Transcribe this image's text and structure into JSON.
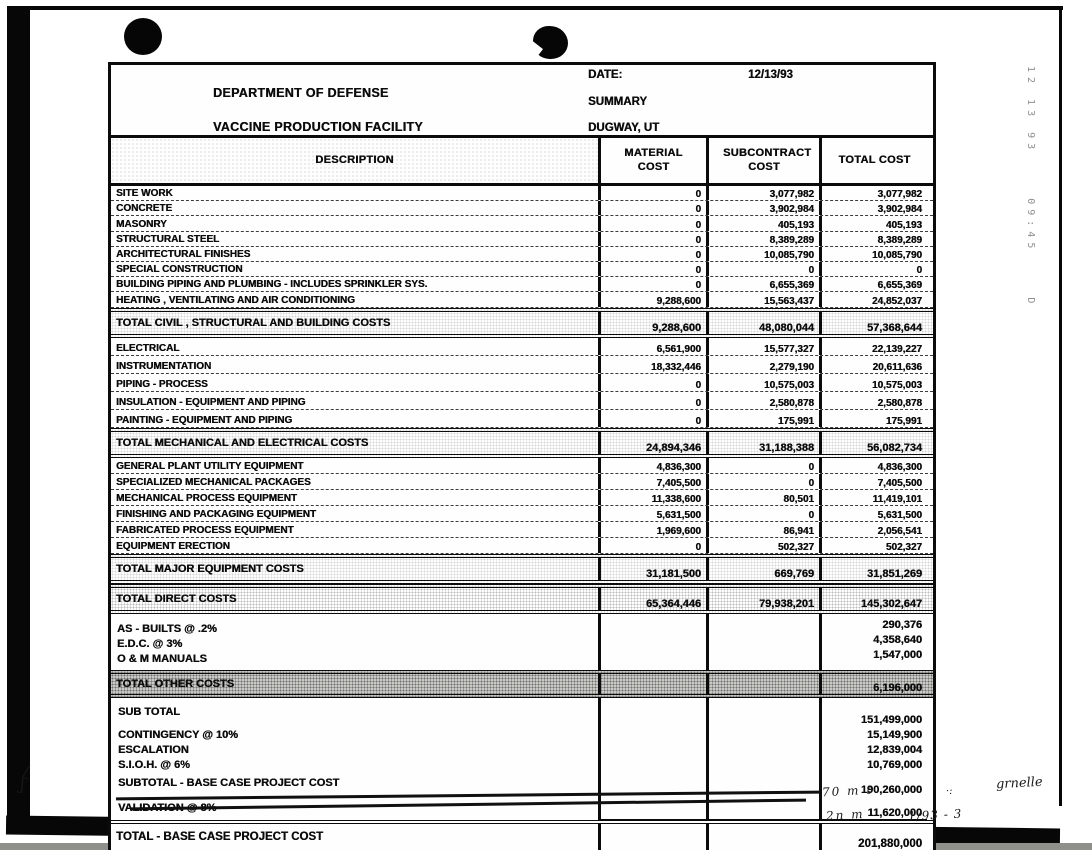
{
  "colors": {
    "ink": "#0c0c0c",
    "paper": "#ffffff",
    "fax_text": "#8f8f8f"
  },
  "page": {
    "date_label": "DATE:",
    "date_value": "12/13/93",
    "org": "DEPARTMENT OF DEFENSE",
    "doc_type": "SUMMARY",
    "facility": "VACCINE PRODUCTION FACILITY",
    "location": "DUGWAY, UT"
  },
  "table": {
    "columns": [
      "DESCRIPTION",
      "MATERIAL COST",
      "SUBCONTRACT COST",
      "TOTAL COST"
    ],
    "sections": [
      {
        "items": [
          {
            "desc": "SITE WORK",
            "material": "0",
            "subcontract": "3,077,982",
            "total": "3,077,982"
          },
          {
            "desc": "CONCRETE",
            "material": "0",
            "subcontract": "3,902,984",
            "total": "3,902,984"
          },
          {
            "desc": "MASONRY",
            "material": "0",
            "subcontract": "405,193",
            "total": "405,193"
          },
          {
            "desc": "STRUCTURAL STEEL",
            "material": "0",
            "subcontract": "8,389,289",
            "total": "8,389,289"
          },
          {
            "desc": "ARCHITECTURAL FINISHES",
            "material": "0",
            "subcontract": "10,085,790",
            "total": "10,085,790"
          },
          {
            "desc": "SPECIAL CONSTRUCTION",
            "material": "0",
            "subcontract": "0",
            "total": "0"
          },
          {
            "desc": "BUILDING PIPING AND PLUMBING - INCLUDES SPRINKLER SYS.",
            "material": "0",
            "subcontract": "6,655,369",
            "total": "6,655,369"
          },
          {
            "desc": "HEATING , VENTILATING AND AIR CONDITIONING",
            "material": "9,288,600",
            "subcontract": "15,563,437",
            "total": "24,852,037"
          }
        ],
        "total": {
          "desc": "TOTAL CIVIL , STRUCTURAL AND BUILDING COSTS",
          "material": "9,288,600",
          "subcontract": "48,080,044",
          "total": "57,368,644"
        }
      },
      {
        "items": [
          {
            "desc": "ELECTRICAL",
            "material": "6,561,900",
            "subcontract": "15,577,327",
            "total": "22,139,227"
          },
          {
            "desc": "INSTRUMENTATION",
            "material": "18,332,446",
            "subcontract": "2,279,190",
            "total": "20,611,636"
          },
          {
            "desc": "PIPING - PROCESS",
            "material": "0",
            "subcontract": "10,575,003",
            "total": "10,575,003"
          },
          {
            "desc": "INSULATION - EQUIPMENT AND PIPING",
            "material": "0",
            "subcontract": "2,580,878",
            "total": "2,580,878"
          },
          {
            "desc": "PAINTING - EQUIPMENT AND PIPING",
            "material": "0",
            "subcontract": "175,991",
            "total": "175,991"
          }
        ],
        "total": {
          "desc": "TOTAL MECHANICAL AND ELECTRICAL COSTS",
          "material": "24,894,346",
          "subcontract": "31,188,388",
          "total": "56,082,734"
        }
      },
      {
        "items": [
          {
            "desc": "GENERAL PLANT UTILITY EQUIPMENT",
            "material": "4,836,300",
            "subcontract": "0",
            "total": "4,836,300"
          },
          {
            "desc": "SPECIALIZED MECHANICAL PACKAGES",
            "material": "7,405,500",
            "subcontract": "0",
            "total": "7,405,500"
          },
          {
            "desc": "MECHANICAL PROCESS EQUIPMENT",
            "material": "11,338,600",
            "subcontract": "80,501",
            "total": "11,419,101"
          },
          {
            "desc": "FINISHING AND PACKAGING EQUIPMENT",
            "material": "5,631,500",
            "subcontract": "0",
            "total": "5,631,500"
          },
          {
            "desc": "FABRICATED PROCESS EQUIPMENT",
            "material": "1,969,600",
            "subcontract": "86,941",
            "total": "2,056,541"
          },
          {
            "desc": "EQUIPMENT ERECTION",
            "material": "0",
            "subcontract": "502,327",
            "total": "502,327"
          }
        ],
        "total": {
          "desc": "TOTAL MAJOR EQUIPMENT COSTS",
          "material": "31,181,500",
          "subcontract": "669,769",
          "total": "31,851,269"
        }
      }
    ],
    "grand_total": {
      "desc": "TOTAL DIRECT COSTS",
      "material": "65,364,446",
      "subcontract": "79,938,201",
      "total": "145,302,647"
    },
    "other_costs": {
      "items": [
        {
          "desc": "AS - BUILTS @ .2%",
          "total": "290,376"
        },
        {
          "desc": "E.D.C. @ 3%",
          "total": "4,358,640"
        },
        {
          "desc": "O & M MANUALS",
          "total": "1,547,000"
        }
      ],
      "total": {
        "desc": "TOTAL OTHER COSTS",
        "total": "6,196,000"
      }
    },
    "summary_rows": [
      {
        "desc": "SUB TOTAL",
        "total": "151,499,000"
      },
      {
        "desc": "CONTINGENCY  @ 10%",
        "total": "15,149,900"
      },
      {
        "desc": "ESCALATION",
        "total": "12,839,004"
      },
      {
        "desc": "S.I.O.H.  @ 6%",
        "total": "10,769,000"
      },
      {
        "desc": "SUBTOTAL - BASE CASE PROJECT COST",
        "total": "190,260,000"
      },
      {
        "desc": "VALIDATION @ 8%",
        "total": "11,620,000"
      }
    ],
    "final_total": {
      "desc": "TOTAL - BASE CASE PROJECT COST",
      "total": "201,880,000"
    }
  },
  "annotations": {
    "fax_timestamp_vertical": "12 13 93    09:45    D",
    "handwritten_note_1": "70 m t",
    "handwritten_mark_1": "·:",
    "handwritten_word_1": "grnelle",
    "handwritten_note_2": "2n m",
    "handwritten_note_3": "1/93 - 3",
    "margin_scribble_top": "/",
    "margin_scribble_bottom": "ʃ"
  }
}
